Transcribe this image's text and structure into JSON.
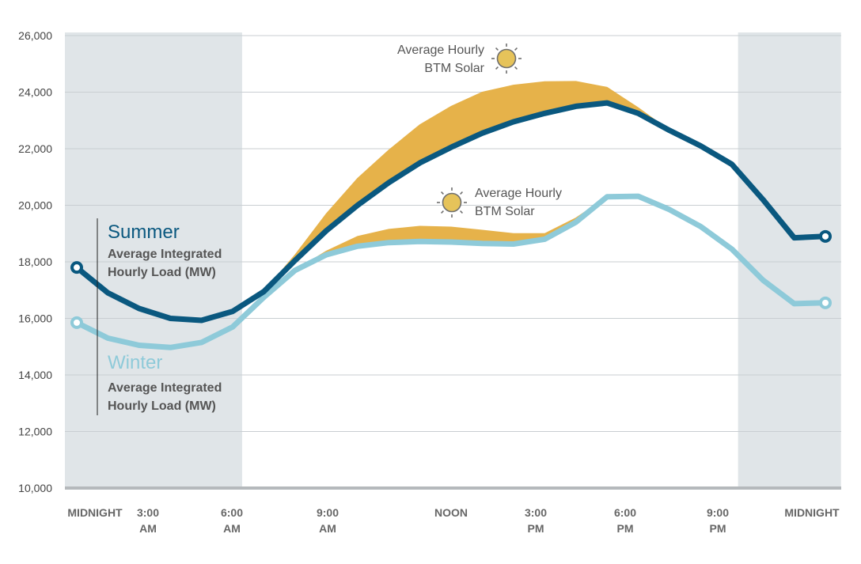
{
  "chart_data": {
    "type": "line",
    "ylim": [
      10000,
      26000
    ],
    "yticks": [
      10000,
      12000,
      14000,
      16000,
      18000,
      20000,
      22000,
      24000,
      26000
    ],
    "ytick_labels": [
      "10,000",
      "12,000",
      "14,000",
      "16,000",
      "18,000",
      "20,000",
      "22,000",
      "24,000",
      "26,000"
    ],
    "x_hours": [
      0,
      1,
      2,
      3,
      4,
      5,
      6,
      7,
      8,
      9,
      10,
      11,
      12,
      13,
      14,
      15,
      16,
      17,
      18,
      19,
      20,
      21,
      22,
      23,
      24
    ],
    "xticks": [
      {
        "hour": 0,
        "lines": [
          "MIDNIGHT"
        ]
      },
      {
        "hour": 3,
        "lines": [
          "3:00",
          "AM"
        ]
      },
      {
        "hour": 6,
        "lines": [
          "6:00",
          "AM"
        ]
      },
      {
        "hour": 9,
        "lines": [
          "9:00",
          "AM"
        ]
      },
      {
        "hour": 12,
        "lines": [
          "NOON"
        ]
      },
      {
        "hour": 15,
        "lines": [
          "3:00",
          "PM"
        ]
      },
      {
        "hour": 18,
        "lines": [
          "6:00",
          "PM"
        ]
      },
      {
        "hour": 21,
        "lines": [
          "9:00",
          "PM"
        ]
      },
      {
        "hour": 24,
        "lines": [
          "MIDNIGHT"
        ]
      }
    ],
    "shaded_night": [
      [
        0,
        5.3
      ],
      [
        21.2,
        24.5
      ]
    ],
    "series": [
      {
        "name": "Summer",
        "subtitle": [
          "Average Integrated",
          "Hourly Load (MW)"
        ],
        "color": "#0a587f",
        "values": [
          17800,
          16900,
          16350,
          16000,
          15930,
          16250,
          16950,
          18050,
          19100,
          20000,
          20800,
          21500,
          22050,
          22550,
          22950,
          23250,
          23500,
          23620,
          23250,
          22650,
          22100,
          21450,
          20200,
          18850,
          18900
        ],
        "solar_total": [
          17800,
          16900,
          16350,
          16000,
          15930,
          16250,
          16950,
          18250,
          19700,
          20950,
          21950,
          22850,
          23500,
          24000,
          24250,
          24370,
          24380,
          24170,
          23450,
          22650,
          22100,
          21450,
          20200,
          18850,
          18900
        ]
      },
      {
        "name": "Winter",
        "subtitle": [
          "Average Integrated",
          "Hourly Load (MW)"
        ],
        "color": "#8ecad9",
        "values": [
          15850,
          15300,
          15050,
          14970,
          15150,
          15700,
          16750,
          17700,
          18250,
          18550,
          18680,
          18720,
          18700,
          18650,
          18630,
          18800,
          19400,
          20300,
          20320,
          19850,
          19250,
          18450,
          17350,
          16520,
          16550
        ],
        "solar_total": [
          15850,
          15300,
          15050,
          14970,
          15150,
          15700,
          16750,
          17700,
          18380,
          18900,
          19150,
          19260,
          19230,
          19120,
          19000,
          19000,
          19550,
          20300,
          20320,
          19850,
          19250,
          18450,
          17350,
          16520,
          16550
        ]
      }
    ],
    "solar_color": "#e6b24a",
    "annotations": {
      "summer_solar": [
        "Average Hourly",
        "BTM Solar"
      ],
      "winter_solar": [
        "Average Hourly",
        "BTM Solar"
      ]
    },
    "sun_icon": "sun-icon",
    "grid": true
  }
}
